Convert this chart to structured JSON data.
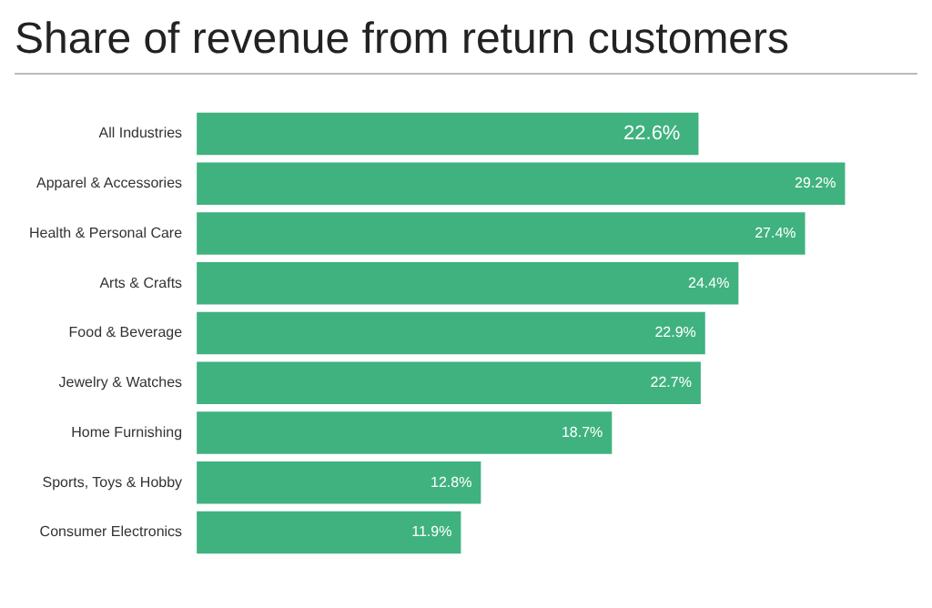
{
  "chart_data": {
    "type": "bar",
    "orientation": "horizontal",
    "title": "Share of revenue from return customers",
    "categories": [
      "All Industries",
      "Apparel & Accessories",
      "Health & Personal Care",
      "Arts & Crafts",
      "Food & Beverage",
      "Jewelry & Watches",
      "Home Furnishing",
      "Sports, Toys & Hobby",
      "Consumer Electronics"
    ],
    "values": [
      22.6,
      29.2,
      27.4,
      24.4,
      22.9,
      22.7,
      18.7,
      12.8,
      11.9
    ],
    "value_labels": [
      "22.6%",
      "29.2%",
      "27.4%",
      "24.4%",
      "22.9%",
      "22.7%",
      "18.7%",
      "12.8%",
      "11.9%"
    ],
    "color": "#3fb27f",
    "legend": false,
    "tick_labels": "y"
  }
}
